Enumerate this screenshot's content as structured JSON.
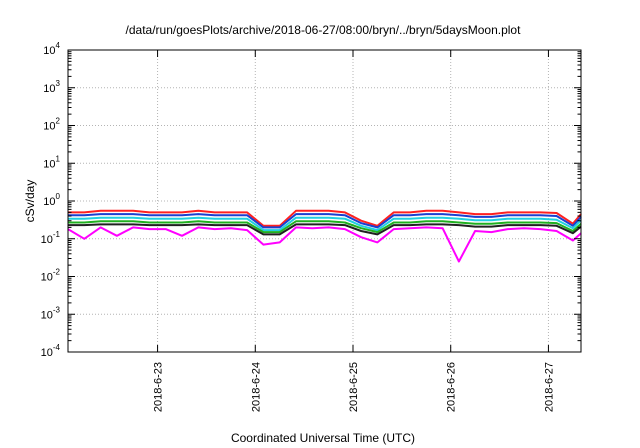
{
  "chart_data": {
    "type": "line",
    "title": "/data/run/goesPlots/archive/2018-06-27/08:00/bryn/../bryn/5daysMoon.plot",
    "xlabel": "Coordinated Universal Time (UTC)",
    "ylabel": "cSv/day",
    "x_range": [
      "2018-06-22 02:00",
      "2018-06-27 08:00"
    ],
    "ylim": [
      0.0001,
      10000
    ],
    "y_scale": "log",
    "grid": true,
    "x_ticks": [
      {
        "value": "2018-06-23 00:00",
        "label": "2018-6-23"
      },
      {
        "value": "2018-06-24 00:00",
        "label": "2018-6-24"
      },
      {
        "value": "2018-06-25 00:00",
        "label": "2018-6-25"
      },
      {
        "value": "2018-06-26 00:00",
        "label": "2018-6-26"
      },
      {
        "value": "2018-06-27 00:00",
        "label": "2018-6-27"
      }
    ],
    "y_ticks": [
      {
        "value": 0.0001,
        "base": "10",
        "exp": "-4"
      },
      {
        "value": 0.001,
        "base": "10",
        "exp": "-3"
      },
      {
        "value": 0.01,
        "base": "10",
        "exp": "-2"
      },
      {
        "value": 0.1,
        "base": "10",
        "exp": "-1"
      },
      {
        "value": 1,
        "base": "10",
        "exp": "0"
      },
      {
        "value": 10,
        "base": "10",
        "exp": "1"
      },
      {
        "value": 100,
        "base": "10",
        "exp": "2"
      },
      {
        "value": 1000,
        "base": "10",
        "exp": "3"
      },
      {
        "value": 10000,
        "base": "10",
        "exp": "4"
      }
    ],
    "x": [
      "2018-06-22 02:00",
      "2018-06-22 06:00",
      "2018-06-22 10:00",
      "2018-06-22 14:00",
      "2018-06-22 18:00",
      "2018-06-22 22:00",
      "2018-06-23 02:00",
      "2018-06-23 06:00",
      "2018-06-23 10:00",
      "2018-06-23 14:00",
      "2018-06-23 18:00",
      "2018-06-23 22:00",
      "2018-06-24 02:00",
      "2018-06-24 06:00",
      "2018-06-24 10:00",
      "2018-06-24 14:00",
      "2018-06-24 18:00",
      "2018-06-24 22:00",
      "2018-06-25 02:00",
      "2018-06-25 06:00",
      "2018-06-25 10:00",
      "2018-06-25 14:00",
      "2018-06-25 18:00",
      "2018-06-25 22:00",
      "2018-06-26 02:00",
      "2018-06-26 06:00",
      "2018-06-26 10:00",
      "2018-06-26 14:00",
      "2018-06-26 18:00",
      "2018-06-26 22:00",
      "2018-06-27 02:00",
      "2018-06-27 06:00",
      "2018-06-27 08:00"
    ],
    "series": [
      {
        "color": "#ff2020",
        "values": [
          0.5,
          0.5,
          0.55,
          0.55,
          0.55,
          0.5,
          0.5,
          0.5,
          0.55,
          0.5,
          0.5,
          0.5,
          0.22,
          0.22,
          0.55,
          0.55,
          0.55,
          0.5,
          0.3,
          0.22,
          0.5,
          0.5,
          0.55,
          0.55,
          0.5,
          0.45,
          0.45,
          0.5,
          0.5,
          0.5,
          0.48,
          0.25,
          0.45
        ]
      },
      {
        "color": "#1a3fd0",
        "values": [
          0.42,
          0.42,
          0.45,
          0.45,
          0.45,
          0.42,
          0.42,
          0.42,
          0.45,
          0.42,
          0.42,
          0.42,
          0.2,
          0.2,
          0.45,
          0.45,
          0.45,
          0.42,
          0.26,
          0.2,
          0.42,
          0.42,
          0.45,
          0.45,
          0.42,
          0.38,
          0.38,
          0.42,
          0.42,
          0.42,
          0.4,
          0.22,
          0.38
        ]
      },
      {
        "color": "#20d0e0",
        "values": [
          0.34,
          0.34,
          0.36,
          0.36,
          0.36,
          0.34,
          0.34,
          0.34,
          0.36,
          0.34,
          0.34,
          0.34,
          0.17,
          0.17,
          0.36,
          0.36,
          0.36,
          0.34,
          0.22,
          0.17,
          0.34,
          0.34,
          0.36,
          0.36,
          0.34,
          0.31,
          0.31,
          0.34,
          0.34,
          0.34,
          0.32,
          0.19,
          0.31
        ]
      },
      {
        "color": "#20b020",
        "values": [
          0.27,
          0.27,
          0.29,
          0.29,
          0.29,
          0.27,
          0.27,
          0.27,
          0.29,
          0.27,
          0.27,
          0.27,
          0.15,
          0.15,
          0.29,
          0.29,
          0.29,
          0.27,
          0.19,
          0.15,
          0.27,
          0.27,
          0.29,
          0.29,
          0.27,
          0.25,
          0.25,
          0.27,
          0.27,
          0.27,
          0.26,
          0.16,
          0.25
        ]
      },
      {
        "color": "#202020",
        "values": [
          0.23,
          0.23,
          0.24,
          0.24,
          0.24,
          0.23,
          0.23,
          0.23,
          0.24,
          0.23,
          0.23,
          0.23,
          0.13,
          0.13,
          0.24,
          0.24,
          0.24,
          0.23,
          0.16,
          0.13,
          0.23,
          0.23,
          0.24,
          0.24,
          0.23,
          0.21,
          0.21,
          0.23,
          0.23,
          0.23,
          0.22,
          0.14,
          0.21
        ]
      },
      {
        "color": "#ff00ff",
        "values": [
          0.18,
          0.1,
          0.2,
          0.12,
          0.2,
          0.18,
          0.18,
          0.12,
          0.2,
          0.18,
          0.19,
          0.17,
          0.07,
          0.08,
          0.2,
          0.19,
          0.2,
          0.18,
          0.11,
          0.08,
          0.18,
          0.19,
          0.2,
          0.19,
          0.025,
          0.16,
          0.15,
          0.18,
          0.19,
          0.18,
          0.16,
          0.09,
          0.14
        ]
      }
    ]
  }
}
